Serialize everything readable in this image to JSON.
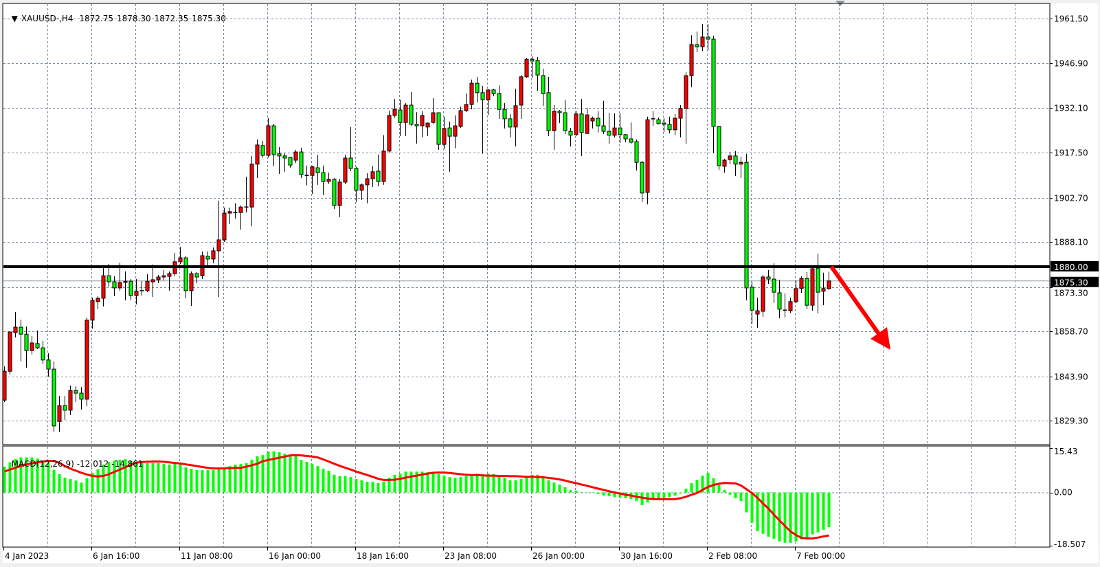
{
  "header": {
    "marker": "▼",
    "symbol_timeframe": "XAUUSD-,H4",
    "open": "1872.75",
    "high": "1878.30",
    "low": "1872.35",
    "close": "1875.30"
  },
  "colors": {
    "background": "#ffffff",
    "grid": "#778899",
    "bull_candle": "#ff0000",
    "bear_candle": "#00ff00",
    "candle_outline": "#000000",
    "macd_histogram": "#00ff00",
    "macd_signal": "#ff0000",
    "annotation_arrow": "#ff0000",
    "level_line": "#000000",
    "current_price_line": "#8a96a3"
  },
  "chart_data": [
    {
      "type": "candlestick",
      "symbol": "XAUUSD-",
      "timeframe": "H4",
      "ylim": [
        1821.5,
        1966.5
      ],
      "grid": true,
      "y_ticks": [
        "1961.50",
        "1946.90",
        "1932.10",
        "1917.50",
        "1902.70",
        "1888.10",
        "1873.30",
        "1858.70",
        "1843.90",
        "1829.30"
      ],
      "x_tick_labels": [
        "4 Jan 2023",
        "6 Jan 16:00",
        "11 Jan 08:00",
        "16 Jan 00:00",
        "18 Jan 16:00",
        "23 Jan 08:00",
        "26 Jan 00:00",
        "30 Jan 16:00",
        "2 Feb 08:00",
        "7 Feb 00:00"
      ],
      "horizontal_level": {
        "price": 1880.0,
        "label": "1880.00"
      },
      "current_price": {
        "price": 1875.3,
        "label": "1875.30"
      },
      "annotation": {
        "type": "arrow",
        "direction": "down-right"
      },
      "ohlc_columns": [
        "open",
        "high",
        "low",
        "close"
      ],
      "candles": [
        [
          1836.1,
          1847.2,
          1835.5,
          1845.6
        ],
        [
          1845.6,
          1858.7,
          1844.5,
          1858.5
        ],
        [
          1858.3,
          1865.1,
          1856.7,
          1860.1
        ],
        [
          1860.1,
          1862.6,
          1848.8,
          1857.8
        ],
        [
          1857.8,
          1860.3,
          1846.8,
          1852.4
        ],
        [
          1852.4,
          1857.2,
          1851.1,
          1854.9
        ],
        [
          1854.7,
          1859.0,
          1852.9,
          1853.3
        ],
        [
          1853.3,
          1855.6,
          1847.9,
          1849.3
        ],
        [
          1849.3,
          1851.5,
          1843.8,
          1846.3
        ],
        [
          1846.3,
          1848.8,
          1825.7,
          1827.6
        ],
        [
          1829.1,
          1837.5,
          1825.7,
          1834.3
        ],
        [
          1834.3,
          1837.5,
          1829.6,
          1832.8
        ],
        [
          1832.8,
          1840.9,
          1831.2,
          1839.3
        ],
        [
          1839.3,
          1840.7,
          1835.5,
          1838.4
        ],
        [
          1838.4,
          1840.4,
          1833.0,
          1836.4
        ],
        [
          1836.4,
          1863.3,
          1834.1,
          1862.4
        ],
        [
          1862.4,
          1869.8,
          1859.6,
          1868.9
        ],
        [
          1868.5,
          1870.3,
          1866.0,
          1869.6
        ],
        [
          1869.6,
          1879.5,
          1866.9,
          1877.0
        ],
        [
          1877.0,
          1880.9,
          1873.4,
          1875.0
        ],
        [
          1875.0,
          1876.8,
          1870.3,
          1873.0
        ],
        [
          1873.0,
          1881.3,
          1872.1,
          1874.8
        ],
        [
          1874.8,
          1878.4,
          1868.9,
          1875.2
        ],
        [
          1875.2,
          1875.9,
          1868.9,
          1870.5
        ],
        [
          1870.5,
          1875.9,
          1867.6,
          1871.9
        ],
        [
          1872.1,
          1875.2,
          1870.5,
          1872.1
        ],
        [
          1872.1,
          1877.5,
          1871.6,
          1875.2
        ],
        [
          1875.0,
          1880.7,
          1870.0,
          1875.7
        ],
        [
          1875.7,
          1877.3,
          1874.6,
          1876.6
        ],
        [
          1876.6,
          1878.9,
          1875.5,
          1877.0
        ],
        [
          1876.8,
          1878.4,
          1872.1,
          1877.7
        ],
        [
          1877.7,
          1884.5,
          1876.8,
          1881.6
        ],
        [
          1881.6,
          1886.5,
          1880.9,
          1882.9
        ],
        [
          1882.9,
          1883.4,
          1869.6,
          1872.1
        ],
        [
          1872.1,
          1878.4,
          1867.1,
          1877.7
        ],
        [
          1877.7,
          1878.2,
          1874.6,
          1876.6
        ],
        [
          1877.0,
          1885.0,
          1875.9,
          1883.6
        ],
        [
          1883.4,
          1885.0,
          1880.4,
          1882.5
        ],
        [
          1882.5,
          1886.3,
          1881.1,
          1885.2
        ],
        [
          1885.2,
          1901.7,
          1870.0,
          1888.8
        ],
        [
          1888.8,
          1899.4,
          1888.1,
          1897.6
        ],
        [
          1897.6,
          1899.4,
          1894.0,
          1898.1
        ],
        [
          1897.8,
          1900.8,
          1895.8,
          1897.8
        ],
        [
          1897.8,
          1900.1,
          1892.2,
          1899.6
        ],
        [
          1899.6,
          1909.6,
          1897.8,
          1899.6
        ],
        [
          1899.6,
          1916.4,
          1893.3,
          1913.7
        ],
        [
          1913.7,
          1921.8,
          1909.1,
          1920.0
        ],
        [
          1919.8,
          1921.3,
          1915.9,
          1916.6
        ],
        [
          1916.6,
          1928.8,
          1915.9,
          1926.3
        ],
        [
          1926.3,
          1927.0,
          1913.0,
          1916.8
        ],
        [
          1917.1,
          1919.3,
          1910.5,
          1916.4
        ],
        [
          1916.4,
          1917.3,
          1911.2,
          1915.7
        ],
        [
          1915.9,
          1916.1,
          1912.5,
          1913.4
        ],
        [
          1915.0,
          1918.4,
          1914.1,
          1917.7
        ],
        [
          1917.7,
          1919.1,
          1909.1,
          1910.3
        ],
        [
          1910.0,
          1913.2,
          1906.7,
          1910.0
        ],
        [
          1910.0,
          1913.2,
          1903.9,
          1912.8
        ],
        [
          1912.5,
          1916.6,
          1906.9,
          1910.9
        ],
        [
          1910.9,
          1913.2,
          1903.5,
          1908.0
        ],
        [
          1908.0,
          1910.9,
          1907.1,
          1908.7
        ],
        [
          1908.7,
          1909.1,
          1899.0,
          1900.1
        ],
        [
          1900.1,
          1908.9,
          1896.3,
          1907.8
        ],
        [
          1907.8,
          1916.8,
          1907.1,
          1915.7
        ],
        [
          1915.7,
          1925.9,
          1911.4,
          1912.3
        ],
        [
          1912.3,
          1912.8,
          1901.2,
          1905.1
        ],
        [
          1905.1,
          1907.3,
          1901.9,
          1906.9
        ],
        [
          1906.9,
          1910.7,
          1900.8,
          1908.9
        ],
        [
          1908.9,
          1913.0,
          1906.2,
          1911.2
        ],
        [
          1911.4,
          1916.8,
          1906.4,
          1908.0
        ],
        [
          1908.0,
          1923.2,
          1906.9,
          1918.0
        ],
        [
          1918.0,
          1931.3,
          1917.5,
          1929.7
        ],
        [
          1929.7,
          1935.1,
          1929.0,
          1931.7
        ],
        [
          1931.5,
          1934.9,
          1922.9,
          1927.4
        ],
        [
          1927.4,
          1933.8,
          1922.9,
          1933.1
        ],
        [
          1933.1,
          1937.4,
          1926.3,
          1926.8
        ],
        [
          1926.8,
          1930.8,
          1920.4,
          1926.3
        ],
        [
          1926.3,
          1931.1,
          1922.5,
          1929.7
        ],
        [
          1925.9,
          1927.4,
          1922.9,
          1927.2
        ],
        [
          1927.4,
          1935.4,
          1927.0,
          1930.6
        ],
        [
          1930.6,
          1930.6,
          1918.4,
          1920.2
        ],
        [
          1920.2,
          1929.3,
          1918.6,
          1925.4
        ],
        [
          1925.6,
          1927.7,
          1911.2,
          1922.9
        ],
        [
          1922.9,
          1929.7,
          1918.9,
          1926.3
        ],
        [
          1926.1,
          1932.6,
          1925.6,
          1931.3
        ],
        [
          1931.3,
          1936.9,
          1930.8,
          1933.3
        ],
        [
          1933.3,
          1941.5,
          1931.7,
          1940.3
        ],
        [
          1940.3,
          1942.4,
          1934.0,
          1937.2
        ],
        [
          1937.2,
          1939.4,
          1917.1,
          1934.9
        ],
        [
          1934.9,
          1938.3,
          1929.9,
          1938.1
        ],
        [
          1938.1,
          1938.5,
          1936.0,
          1936.9
        ],
        [
          1936.9,
          1939.6,
          1928.6,
          1931.7
        ],
        [
          1931.7,
          1933.8,
          1925.4,
          1928.6
        ],
        [
          1928.6,
          1930.2,
          1922.5,
          1925.9
        ],
        [
          1925.9,
          1938.5,
          1919.5,
          1932.9
        ],
        [
          1933.1,
          1943.0,
          1928.6,
          1942.4
        ],
        [
          1942.4,
          1948.7,
          1942.1,
          1948.2
        ],
        [
          1948.2,
          1949.1,
          1942.1,
          1947.6
        ],
        [
          1947.8,
          1948.9,
          1937.8,
          1943.0
        ],
        [
          1942.8,
          1945.1,
          1932.9,
          1936.9
        ],
        [
          1937.2,
          1942.4,
          1922.9,
          1924.7
        ],
        [
          1924.7,
          1933.1,
          1918.4,
          1931.1
        ],
        [
          1931.1,
          1931.5,
          1927.2,
          1930.6
        ],
        [
          1930.6,
          1934.9,
          1923.6,
          1924.7
        ],
        [
          1924.5,
          1925.6,
          1919.5,
          1923.2
        ],
        [
          1923.4,
          1931.3,
          1922.9,
          1930.2
        ],
        [
          1930.2,
          1935.1,
          1916.4,
          1924.1
        ],
        [
          1923.8,
          1932.2,
          1923.6,
          1929.9
        ],
        [
          1927.9,
          1929.3,
          1925.4,
          1928.8
        ],
        [
          1928.8,
          1931.1,
          1924.1,
          1926.3
        ],
        [
          1926.3,
          1934.5,
          1923.6,
          1924.5
        ],
        [
          1924.5,
          1930.6,
          1920.4,
          1923.2
        ],
        [
          1923.2,
          1930.4,
          1922.5,
          1925.6
        ],
        [
          1925.6,
          1930.4,
          1920.7,
          1923.4
        ],
        [
          1923.4,
          1923.6,
          1920.9,
          1922.0
        ],
        [
          1922.0,
          1927.4,
          1920.4,
          1920.9
        ],
        [
          1921.1,
          1921.8,
          1911.6,
          1914.3
        ],
        [
          1914.3,
          1914.8,
          1901.2,
          1904.2
        ],
        [
          1904.4,
          1929.3,
          1900.5,
          1928.3
        ],
        [
          1928.6,
          1931.1,
          1926.3,
          1928.6
        ],
        [
          1928.3,
          1929.0,
          1926.8,
          1927.0
        ],
        [
          1927.2,
          1928.8,
          1924.3,
          1926.8
        ],
        [
          1926.8,
          1929.3,
          1923.8,
          1925.0
        ],
        [
          1925.0,
          1930.2,
          1923.2,
          1928.8
        ],
        [
          1928.8,
          1933.1,
          1922.5,
          1932.0
        ],
        [
          1932.0,
          1943.9,
          1920.4,
          1942.8
        ],
        [
          1942.8,
          1956.1,
          1939.0,
          1953.0
        ],
        [
          1953.0,
          1957.3,
          1950.5,
          1952.3
        ],
        [
          1952.3,
          1959.8,
          1950.9,
          1955.5
        ],
        [
          1955.5,
          1959.8,
          1951.2,
          1954.8
        ],
        [
          1954.8,
          1955.9,
          1917.3,
          1926.1
        ],
        [
          1926.1,
          1926.3,
          1911.8,
          1913.2
        ],
        [
          1913.0,
          1915.5,
          1910.9,
          1915.0
        ],
        [
          1915.2,
          1917.7,
          1913.7,
          1916.4
        ],
        [
          1916.4,
          1918.0,
          1909.8,
          1913.7
        ],
        [
          1913.7,
          1916.1,
          1909.1,
          1914.3
        ],
        [
          1914.3,
          1917.1,
          1868.9,
          1873.0
        ],
        [
          1873.2,
          1875.0,
          1861.2,
          1865.7
        ],
        [
          1864.4,
          1869.8,
          1859.9,
          1865.5
        ],
        [
          1865.3,
          1877.3,
          1863.5,
          1876.6
        ],
        [
          1876.6,
          1878.9,
          1874.3,
          1875.9
        ],
        [
          1875.9,
          1881.1,
          1868.0,
          1871.6
        ],
        [
          1871.4,
          1875.7,
          1863.0,
          1866.0
        ],
        [
          1865.7,
          1871.2,
          1863.3,
          1865.7
        ],
        [
          1865.5,
          1869.8,
          1864.8,
          1868.5
        ],
        [
          1868.5,
          1875.5,
          1868.0,
          1872.8
        ],
        [
          1872.8,
          1876.8,
          1871.4,
          1876.1
        ],
        [
          1876.1,
          1878.2,
          1866.0,
          1867.3
        ],
        [
          1867.3,
          1880.0,
          1865.5,
          1879.3
        ],
        [
          1879.5,
          1884.3,
          1864.6,
          1871.6
        ],
        [
          1871.9,
          1878.0,
          1867.3,
          1872.8
        ],
        [
          1872.75,
          1878.3,
          1872.35,
          1875.3
        ]
      ]
    },
    {
      "type": "bar+line",
      "indicator": "MACD",
      "label": "MACD(12,26,9)",
      "main_value": "-12.012",
      "signal_value": "-14.861",
      "ylim": [
        -18.507,
        15.43
      ],
      "y_ticks": [
        "15.43",
        "0.00",
        "-18.507"
      ],
      "macd": [
        8.9,
        10.4,
        11.5,
        12.1,
        12.1,
        12.1,
        11.7,
        10.9,
        10.2,
        7.8,
        6.3,
        5.1,
        4.6,
        4.1,
        3.4,
        4.9,
        6.8,
        8.0,
        9.6,
        10.5,
        11.0,
        11.3,
        11.5,
        11.0,
        10.6,
        10.3,
        10.1,
        10.1,
        10.1,
        9.9,
        9.6,
        9.9,
        9.9,
        8.7,
        8.2,
        7.7,
        7.7,
        7.7,
        7.7,
        8.0,
        8.4,
        9.1,
        9.6,
        9.9,
        10.1,
        11.3,
        12.5,
        12.9,
        14.1,
        14.2,
        13.9,
        13.4,
        12.8,
        12.6,
        11.2,
        10.6,
        9.9,
        9.1,
        8.2,
        7.5,
        6.1,
        5.6,
        5.6,
        5.3,
        4.6,
        4.2,
        3.7,
        3.7,
        3.2,
        3.7,
        5.1,
        6.1,
        6.5,
        7.2,
        7.2,
        7.2,
        7.2,
        7.0,
        6.8,
        6.3,
        5.8,
        5.3,
        5.1,
        5.3,
        5.6,
        5.6,
        6.5,
        6.3,
        6.5,
        6.3,
        5.6,
        5.1,
        4.2,
        4.2,
        4.6,
        5.1,
        6.1,
        6.1,
        5.1,
        4.2,
        3.4,
        2.7,
        1.8,
        0.8,
        0.6,
        0.1,
        0.0,
        -0.1,
        -0.6,
        -1.1,
        -1.3,
        -1.6,
        -1.8,
        -2.0,
        -2.3,
        -3.0,
        -4.4,
        -3.5,
        -2.3,
        -2.3,
        -1.8,
        -1.6,
        -1.1,
        -0.4,
        1.3,
        3.2,
        4.4,
        5.8,
        6.8,
        4.9,
        2.5,
        0.8,
        -0.8,
        -2.0,
        -3.0,
        -6.9,
        -10.5,
        -13.4,
        -14.3,
        -15.3,
        -16.0,
        -16.9,
        -17.4,
        -17.4,
        -16.9,
        -16.2,
        -15.7,
        -14.5,
        -13.8,
        -12.9,
        -12.012
      ],
      "signal": [
        7.2,
        7.9,
        8.5,
        9.2,
        9.7,
        10.1,
        10.4,
        10.7,
        10.9,
        10.9,
        10.2,
        9.1,
        8.2,
        7.5,
        6.8,
        6.2,
        5.7,
        5.5,
        5.7,
        6.3,
        7.1,
        7.9,
        8.7,
        9.5,
        10.3,
        10.5,
        10.6,
        10.7,
        10.7,
        10.6,
        10.4,
        10.2,
        10.0,
        9.7,
        9.4,
        9.1,
        8.8,
        8.5,
        8.3,
        8.3,
        8.3,
        8.4,
        8.5,
        8.5,
        8.9,
        9.4,
        9.9,
        10.8,
        11.2,
        11.6,
        12.0,
        12.4,
        12.8,
        12.9,
        12.8,
        12.6,
        12.4,
        12.1,
        11.4,
        10.7,
        9.9,
        9.2,
        8.5,
        7.9,
        7.2,
        6.6,
        6.0,
        5.4,
        4.7,
        4.3,
        4.3,
        4.4,
        4.7,
        5.1,
        5.5,
        5.8,
        6.2,
        6.5,
        6.8,
        6.9,
        6.9,
        6.7,
        6.5,
        6.3,
        6.1,
        6.0,
        6.0,
        5.9,
        5.8,
        5.8,
        5.7,
        5.7,
        5.6,
        5.6,
        5.5,
        5.4,
        5.4,
        5.3,
        5.3,
        5.0,
        4.8,
        4.5,
        4.1,
        3.6,
        3.2,
        2.7,
        2.3,
        1.8,
        1.3,
        0.9,
        0.4,
        0.0,
        -0.4,
        -0.8,
        -1.1,
        -1.5,
        -1.8,
        -2.1,
        -2.3,
        -2.3,
        -2.3,
        -2.3,
        -2.3,
        -2.0,
        -1.5,
        -0.8,
        -0.2,
        0.9,
        1.9,
        2.6,
        3.0,
        3.3,
        3.2,
        3.1,
        2.4,
        1.1,
        -0.2,
        -1.9,
        -3.8,
        -5.6,
        -7.7,
        -9.7,
        -11.6,
        -13.5,
        -14.7,
        -15.7,
        -15.9,
        -15.9,
        -15.6,
        -15.2,
        -14.861
      ]
    }
  ]
}
